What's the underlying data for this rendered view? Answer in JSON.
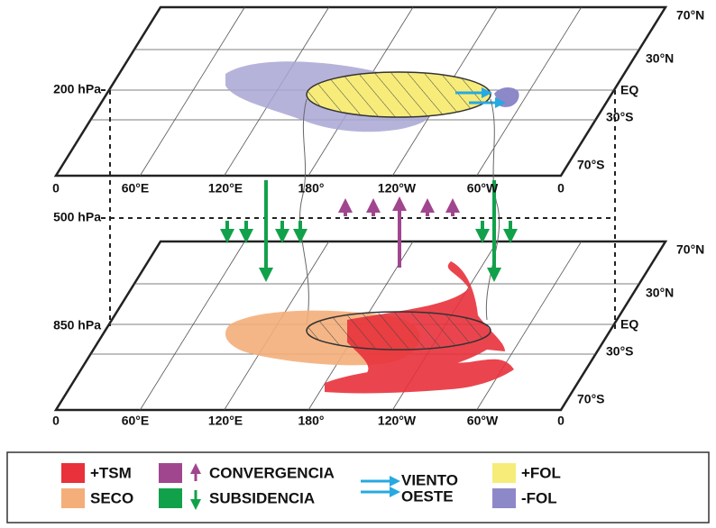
{
  "levels": [
    "200 hPa",
    "500 hPa",
    "850 hPa"
  ],
  "upper_plane": {
    "latitudes": [
      "70°N",
      "30°N",
      "EQ",
      "30°S",
      "70°S"
    ],
    "longitudes": [
      "0",
      "60°E",
      "120°E",
      "180°",
      "120°W",
      "60°W",
      "0"
    ]
  },
  "lower_plane": {
    "latitudes": [
      "70°N",
      "30°N",
      "EQ",
      "30°S",
      "70°S"
    ],
    "longitudes": [
      "0",
      "60°E",
      "120°E",
      "180°",
      "120°W",
      "60°W",
      "0"
    ]
  },
  "legend": {
    "tsm": "+TSM",
    "seco": "SECO",
    "convergencia": "CONVERGENCIA",
    "subsidencia": "SUBSIDENCIA",
    "viento": "VIENTO",
    "oeste": "OESTE",
    "fol_pos": "+FOL",
    "fol_neg": "-FOL"
  }
}
